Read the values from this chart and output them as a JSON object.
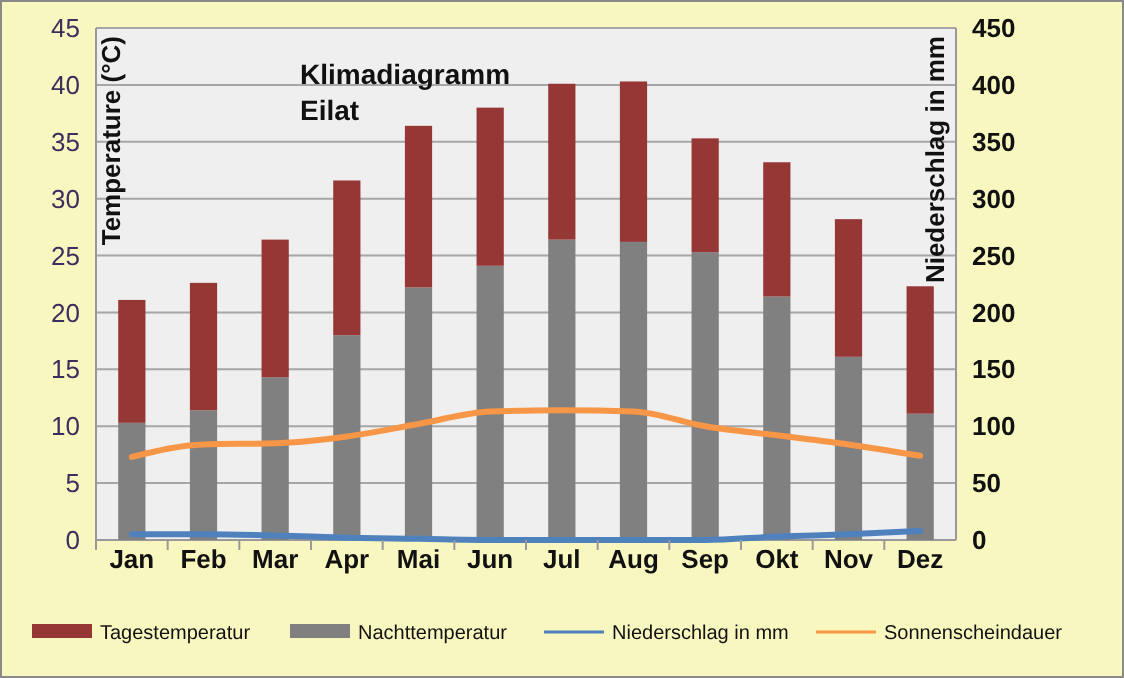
{
  "chart_data": {
    "type": "bar",
    "title": "Klimadiagramm\nEilat",
    "ylabel": "Temperature (°C)",
    "y2label": "Niederschlag in mm",
    "stacked": true,
    "categories": [
      "Jan",
      "Feb",
      "Mar",
      "Apr",
      "Mai",
      "Jun",
      "Jul",
      "Aug",
      "Sep",
      "Okt",
      "Nov",
      "Dez"
    ],
    "series": [
      {
        "name": "Nachttemperatur",
        "color": "#808080",
        "values": [
          10.3,
          11.4,
          14.3,
          18.0,
          22.2,
          24.1,
          26.4,
          26.2,
          25.3,
          21.4,
          16.1,
          11.1
        ]
      },
      {
        "name": "Tagestemperatur",
        "color": "#953735",
        "values": [
          10.8,
          11.2,
          12.1,
          13.6,
          14.2,
          13.9,
          13.7,
          14.1,
          10.0,
          11.8,
          12.1,
          11.2
        ]
      },
      {
        "name": "Niederschlag in mm",
        "type": "line",
        "axis": "y2",
        "color": "#4f81bd",
        "values": [
          5,
          5,
          4,
          2,
          1,
          0,
          0,
          0,
          0,
          3,
          5,
          8
        ]
      },
      {
        "name": "Sonnenscheindauer",
        "type": "line",
        "color": "#f79646",
        "values": [
          7.3,
          8.4,
          8.5,
          9.1,
          10.2,
          11.3,
          11.4,
          11.3,
          10.0,
          9.2,
          8.4,
          7.4
        ]
      }
    ],
    "ylim": [
      0,
      45
    ],
    "yticks": [
      0,
      5,
      10,
      15,
      20,
      25,
      30,
      35,
      40,
      45
    ],
    "y2lim": [
      0,
      450
    ],
    "y2ticks": [
      0,
      50,
      100,
      150,
      200,
      250,
      300,
      350,
      400,
      450
    ],
    "grid": "y",
    "legend": "bottom"
  }
}
